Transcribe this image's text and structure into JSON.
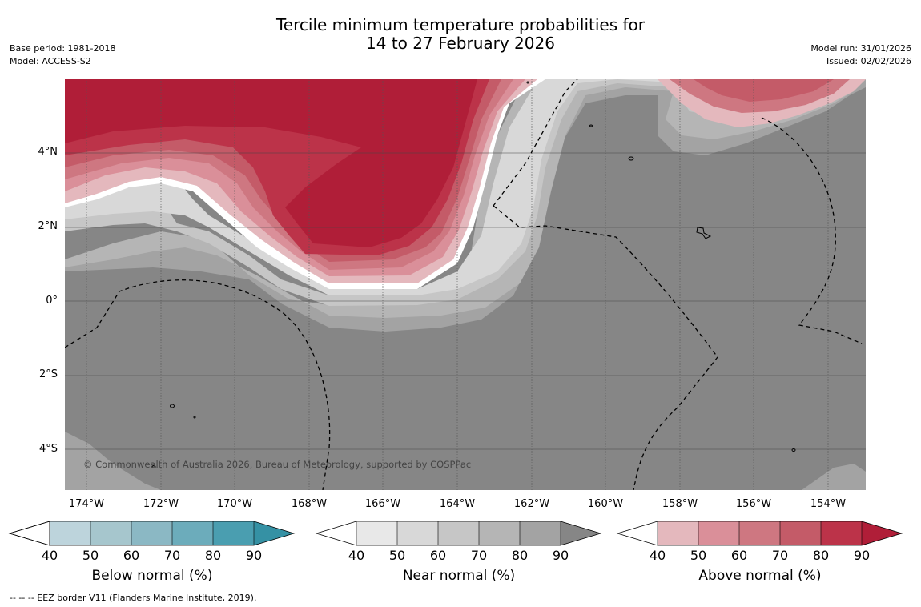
{
  "title": {
    "line1": "Tercile minimum temperature probabilities for",
    "line2": "14 to 27 February 2026"
  },
  "meta_left": {
    "base_period": "Base period: 1981-2018",
    "model": "Model: ACCESS-S2"
  },
  "meta_right": {
    "model_run": "Model run: 31/01/2026",
    "issued": "Issued: 02/02/2026"
  },
  "map": {
    "copyright": "© Commonwealth of Australia 2026, Bureau of Meteorology, supported by COSPPac",
    "lat_labels": [
      "4°N",
      "2°N",
      "0°",
      "2°S",
      "4°S"
    ],
    "lon_labels": [
      "174°W",
      "172°W",
      "170°W",
      "168°W",
      "166°W",
      "164°W",
      "162°W",
      "160°W",
      "158°W",
      "156°W",
      "154°W"
    ]
  },
  "colorbars": {
    "ticks": [
      "40",
      "50",
      "60",
      "70",
      "80",
      "90"
    ],
    "below": {
      "title": "Below normal (%)",
      "colors": [
        "#bdd4dc",
        "#a6c6cd",
        "#8bb8c4",
        "#6cacbb",
        "#4a9eb0",
        "#3591a4"
      ]
    },
    "near": {
      "title": "Near normal (%)",
      "colors": [
        "#e8e8e8",
        "#d8d8d8",
        "#c6c6c6",
        "#b5b5b5",
        "#a3a3a3",
        "#868686"
      ]
    },
    "above": {
      "title": "Above normal (%)",
      "colors": [
        "#e4b8bd",
        "#da8f99",
        "#ce7781",
        "#c45b68",
        "#bc3349",
        "#b01e38"
      ]
    }
  },
  "footnote": "--  --  -- EEZ border V11 (Flanders Marine Institute, 2019)."
}
